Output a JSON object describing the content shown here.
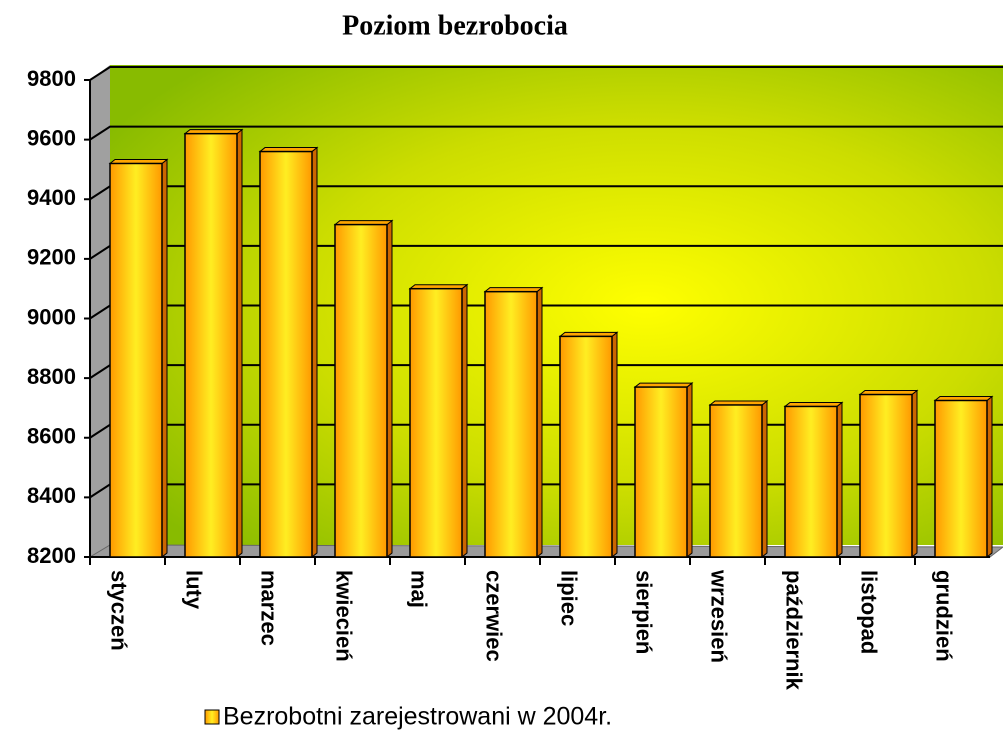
{
  "chart_data": {
    "type": "bar",
    "title": "Poziom bezrobocia",
    "categories": [
      "styczeń",
      "luty",
      "marzec",
      "kwiecień",
      "maj",
      "czerwiec",
      "lipiec",
      "sierpień",
      "wrzesień",
      "październik",
      "listopad",
      "grudzień"
    ],
    "series": [
      {
        "name": "Bezrobotni zarejestrowani w 2004r.",
        "color": "#ffa500",
        "values": [
          9520,
          9620,
          9560,
          9315,
          9100,
          9090,
          8940,
          8770,
          8710,
          8705,
          8745,
          8725
        ]
      }
    ],
    "ylim": [
      8200,
      9800
    ],
    "yticks": [
      8200,
      8400,
      8600,
      8800,
      9000,
      9200,
      9400,
      9600,
      9800
    ],
    "grid": true,
    "legend": "bottom"
  }
}
